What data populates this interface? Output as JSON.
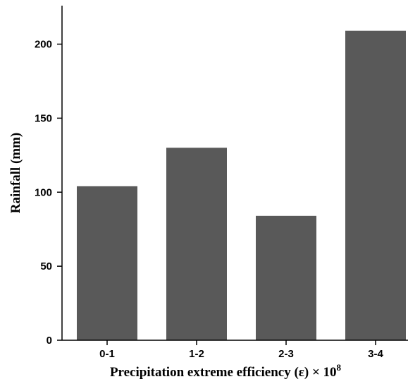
{
  "chart_data": {
    "type": "bar",
    "x_label": "Precipitation extreme efficiency (ε) × 10",
    "x_label_superscript": "8",
    "y_label": "Rainfall (mm)",
    "categories": [
      "0-1",
      "1-2",
      "2-3",
      "3-4"
    ],
    "values": [
      104,
      130,
      84,
      209
    ],
    "color": "#595959",
    "ylim": [
      0,
      226
    ],
    "yticks": [
      0,
      50,
      100,
      150,
      200
    ],
    "grid": false
  }
}
